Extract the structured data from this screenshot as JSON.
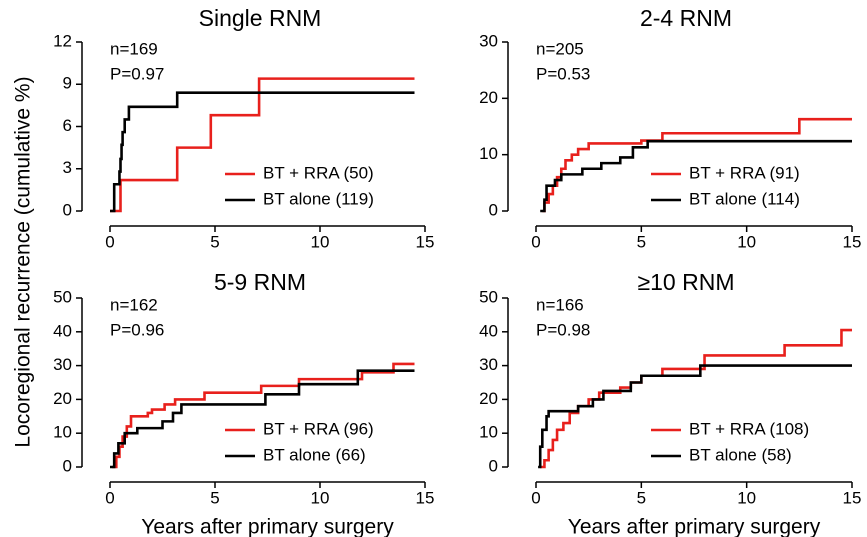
{
  "ylabel": "Locoregional recurrence (cumulative %)",
  "chart_data": [
    {
      "type": "line",
      "step": "post",
      "title": "Single RNM",
      "annotations": [
        "n=169",
        "P=0.97"
      ],
      "legend": "lower right",
      "xlim": [
        0,
        15
      ],
      "xticks": [
        0,
        5,
        10,
        15
      ],
      "ylim": [
        0,
        12
      ],
      "yticks": [
        0,
        3,
        6,
        9,
        12
      ],
      "series": [
        {
          "name": "BT + RRA (50)",
          "color": "#e8201c",
          "x": [
            0,
            0.5,
            3.2,
            4.8,
            7.1,
            14.5
          ],
          "values": [
            0,
            2.2,
            4.5,
            6.8,
            9.4,
            9.4
          ]
        },
        {
          "name": "BT alone (119)",
          "color": "#000000",
          "x": [
            0,
            0.2,
            0.45,
            0.5,
            0.55,
            0.6,
            0.7,
            0.9,
            3.2,
            14.5
          ],
          "values": [
            0,
            1.9,
            2.8,
            3.7,
            4.7,
            5.6,
            6.5,
            7.4,
            8.4,
            8.4
          ]
        }
      ]
    },
    {
      "type": "line",
      "step": "post",
      "title": "2-4 RNM",
      "annotations": [
        "n=205",
        "P=0.53"
      ],
      "legend": "lower right",
      "xlim": [
        0,
        15
      ],
      "xticks": [
        0,
        5,
        10,
        15
      ],
      "ylim": [
        0,
        30
      ],
      "yticks": [
        0,
        10,
        20,
        30
      ],
      "series": [
        {
          "name": "BT + RRA (91)",
          "color": "#e8201c",
          "x": [
            0.3,
            0.4,
            0.6,
            0.8,
            1.0,
            1.2,
            1.4,
            1.7,
            2.0,
            2.5,
            5,
            6,
            12.5,
            15
          ],
          "values": [
            0,
            1.5,
            3,
            4.5,
            6,
            7.5,
            9,
            10,
            11,
            12,
            12.5,
            13.8,
            16.3,
            16.3
          ]
        },
        {
          "name": "BT alone (114)",
          "color": "#000000",
          "x": [
            0.2,
            0.4,
            0.5,
            0.9,
            1.2,
            2.2,
            3.1,
            4.0,
            4.6,
            5.3,
            15
          ],
          "values": [
            0,
            2,
            4.5,
            5.5,
            6.5,
            7.5,
            8.5,
            9.5,
            11.3,
            12.4,
            12.4
          ]
        }
      ]
    },
    {
      "type": "line",
      "step": "post",
      "title": "5-9 RNM",
      "annotations": [
        "n=162",
        "P=0.96"
      ],
      "xlabel": "Years after primary surgery",
      "legend": "lower right",
      "xlim": [
        0,
        15
      ],
      "xticks": [
        0,
        5,
        10,
        15
      ],
      "ylim": [
        0,
        50
      ],
      "yticks": [
        0,
        10,
        20,
        30,
        40,
        50
      ],
      "series": [
        {
          "name": "BT + RRA (96)",
          "color": "#e8201c",
          "x": [
            0.1,
            0.3,
            0.45,
            0.6,
            0.8,
            1.0,
            1.8,
            2.0,
            2.6,
            3.1,
            4.5,
            7.2,
            9,
            12,
            13.5,
            14.5
          ],
          "values": [
            0,
            3,
            6,
            9,
            12,
            15,
            16,
            17,
            18.5,
            20,
            22,
            24,
            26,
            28,
            30.5,
            30.5
          ]
        },
        {
          "name": "BT alone (66)",
          "color": "#000000",
          "x": [
            0,
            0.2,
            0.4,
            0.7,
            1.3,
            2.5,
            3.0,
            3.4,
            7.4,
            9,
            11.8,
            14.5
          ],
          "values": [
            0,
            4,
            7,
            10,
            11.5,
            13.5,
            16,
            18.5,
            21.5,
            24.5,
            28.5,
            28.5
          ]
        }
      ]
    },
    {
      "type": "line",
      "step": "post",
      "title": "≥10 RNM",
      "annotations": [
        "n=166",
        "P=0.98"
      ],
      "xlabel": "Years after primary surgery",
      "legend": "lower right",
      "xlim": [
        0,
        15
      ],
      "xticks": [
        0,
        5,
        10,
        15
      ],
      "ylim": [
        0,
        50
      ],
      "yticks": [
        0,
        10,
        20,
        30,
        40,
        50
      ],
      "series": [
        {
          "name": "BT + RRA (108)",
          "color": "#e8201c",
          "x": [
            0.2,
            0.4,
            0.6,
            0.8,
            1.0,
            1.3,
            1.6,
            2.0,
            2.5,
            3.0,
            4.0,
            4.5,
            5.0,
            6.0,
            8.0,
            11.8,
            14.5,
            15
          ],
          "values": [
            0,
            2,
            5,
            8,
            11,
            13,
            16,
            18,
            20,
            22,
            23.5,
            25,
            27,
            29,
            33,
            36,
            40.5,
            40.5
          ]
        },
        {
          "name": "BT alone (58)",
          "color": "#000000",
          "x": [
            0.1,
            0.2,
            0.3,
            0.5,
            0.6,
            2.0,
            2.7,
            3.2,
            4.5,
            5.0,
            7.8,
            15
          ],
          "values": [
            0,
            6,
            11,
            15,
            16.5,
            18,
            20,
            22.5,
            25,
            27,
            30,
            30
          ]
        }
      ]
    }
  ]
}
